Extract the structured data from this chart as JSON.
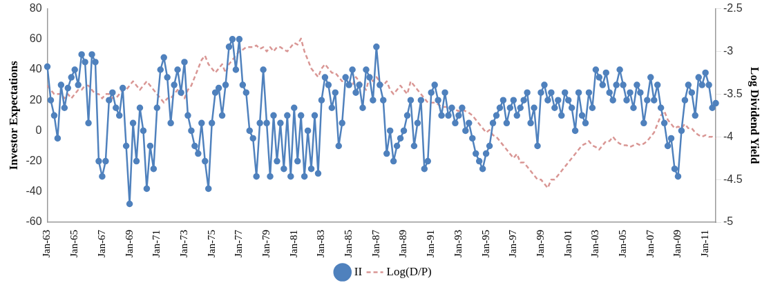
{
  "chart_data": {
    "type": "line",
    "ylabel": "Investor Expectations",
    "y2label": "Log Dividend Yield",
    "categories": [
      "Jan-63",
      null,
      null,
      null,
      null,
      null,
      null,
      null,
      "Jan-65",
      null,
      null,
      null,
      null,
      null,
      null,
      null,
      "Jan-67",
      null,
      null,
      null,
      null,
      null,
      null,
      null,
      "Jan-69",
      null,
      null,
      null,
      null,
      null,
      null,
      null,
      "Jan-71",
      null,
      null,
      null,
      null,
      null,
      null,
      null,
      "Jan-73",
      null,
      null,
      null,
      null,
      null,
      null,
      null,
      "Jan-75",
      null,
      null,
      null,
      null,
      null,
      null,
      null,
      "Jan-77",
      null,
      null,
      null,
      null,
      null,
      null,
      null,
      "Jan-79",
      null,
      null,
      null,
      null,
      null,
      null,
      null,
      "Jan-81",
      null,
      null,
      null,
      null,
      null,
      null,
      null,
      "Jan-83",
      null,
      null,
      null,
      null,
      null,
      null,
      null,
      "Jan-85",
      null,
      null,
      null,
      null,
      null,
      null,
      null,
      "Jan-87",
      null,
      null,
      null,
      null,
      null,
      null,
      null,
      "Jan-89",
      null,
      null,
      null,
      null,
      null,
      null,
      null,
      "Jan-91",
      null,
      null,
      null,
      null,
      null,
      null,
      null,
      "Jan-93",
      null,
      null,
      null,
      null,
      null,
      null,
      null,
      "Jan-95",
      null,
      null,
      null,
      null,
      null,
      null,
      null,
      "Jan-97",
      null,
      null,
      null,
      null,
      null,
      null,
      null,
      "Jan-99",
      null,
      null,
      null,
      null,
      null,
      null,
      null,
      "Jan-01",
      null,
      null,
      null,
      null,
      null,
      null,
      null,
      "Jan-03",
      null,
      null,
      null,
      null,
      null,
      null,
      null,
      "Jan-05",
      null,
      null,
      null,
      null,
      null,
      null,
      null,
      "Jan-07",
      null,
      null,
      null,
      null,
      null,
      null,
      null,
      "Jan-09",
      null,
      null,
      null,
      null,
      null,
      null,
      null,
      "Jan-11",
      null,
      null,
      null
    ],
    "series": [
      {
        "name": "II",
        "color": "#4f81bd",
        "marker": "circle",
        "line_style": "solid",
        "values": [
          42,
          20,
          10,
          -5,
          30,
          15,
          28,
          35,
          40,
          30,
          50,
          45,
          5,
          50,
          45,
          -20,
          -30,
          -20,
          20,
          25,
          15,
          10,
          28,
          -10,
          -48,
          5,
          -20,
          15,
          0,
          -38,
          -10,
          -25,
          15,
          40,
          48,
          35,
          5,
          30,
          40,
          25,
          45,
          10,
          0,
          -10,
          -15,
          5,
          -20,
          -38,
          5,
          25,
          28,
          10,
          30,
          55,
          60,
          40,
          60,
          30,
          25,
          0,
          -5,
          -30,
          5,
          40,
          5,
          -30,
          10,
          -20,
          5,
          -25,
          10,
          -30,
          15,
          -20,
          10,
          -30,
          0,
          -25,
          10,
          -28,
          20,
          35,
          30,
          15,
          25,
          -10,
          5,
          35,
          30,
          40,
          25,
          30,
          15,
          40,
          35,
          20,
          55,
          30,
          20,
          -15,
          0,
          -20,
          -10,
          -5,
          0,
          10,
          20,
          -10,
          5,
          20,
          -25,
          -20,
          25,
          30,
          20,
          10,
          25,
          10,
          15,
          5,
          10,
          15,
          0,
          5,
          -5,
          -15,
          -20,
          -25,
          -15,
          -10,
          5,
          10,
          15,
          20,
          5,
          15,
          20,
          10,
          15,
          20,
          25,
          5,
          15,
          -10,
          25,
          30,
          20,
          25,
          15,
          20,
          10,
          25,
          20,
          15,
          0,
          25,
          10,
          5,
          25,
          15,
          40,
          35,
          30,
          38,
          25,
          20,
          30,
          40,
          30,
          20,
          25,
          15,
          30,
          25,
          5,
          20,
          35,
          20,
          30,
          15,
          5,
          -10,
          -5,
          -25,
          -30,
          0,
          20,
          30,
          25,
          10,
          35,
          30,
          38,
          30,
          15,
          18
        ]
      },
      {
        "name": "Log(D/P)",
        "color": "#d99694",
        "axis": "y2",
        "marker": "none",
        "line_style": "dashed",
        "values": [
          -3.4,
          -3.45,
          -3.5,
          -3.5,
          -3.5,
          -3.55,
          -3.5,
          -3.55,
          -3.5,
          -3.45,
          -3.45,
          -3.4,
          -3.4,
          -3.45,
          -3.5,
          -3.5,
          -3.55,
          -3.5,
          -3.5,
          -3.55,
          -3.55,
          -3.5,
          -3.45,
          -3.45,
          -3.4,
          -3.35,
          -3.4,
          -3.45,
          -3.4,
          -3.35,
          -3.4,
          -3.45,
          -3.5,
          -3.55,
          -3.6,
          -3.55,
          -3.55,
          -3.5,
          -3.45,
          -3.5,
          -3.55,
          -3.45,
          -3.4,
          -3.3,
          -3.2,
          -3.1,
          -3.05,
          -3.15,
          -3.2,
          -3.25,
          -3.2,
          -3.15,
          -3.25,
          -3.15,
          -3.1,
          -3.05,
          -3.0,
          -2.98,
          -2.95,
          -2.95,
          -2.95,
          -2.93,
          -2.97,
          -2.95,
          -3.0,
          -2.95,
          -3.0,
          -2.95,
          -2.95,
          -2.98,
          -3.0,
          -2.95,
          -2.9,
          -2.92,
          -2.85,
          -3.0,
          -3.1,
          -3.2,
          -3.25,
          -3.3,
          -3.2,
          -3.15,
          -3.2,
          -3.25,
          -3.25,
          -3.3,
          -3.35,
          -3.3,
          -3.35,
          -3.4,
          -3.3,
          -3.35,
          -3.4,
          -3.45,
          -3.3,
          -3.35,
          -3.3,
          -3.35,
          -3.4,
          -3.35,
          -3.45,
          -3.5,
          -3.45,
          -3.4,
          -3.45,
          -3.5,
          -3.35,
          -3.4,
          -3.45,
          -3.5,
          -3.55,
          -3.6,
          -3.6,
          -3.6,
          -3.62,
          -3.65,
          -3.65,
          -3.65,
          -3.67,
          -3.68,
          -3.7,
          -3.68,
          -3.7,
          -3.72,
          -3.75,
          -3.8,
          -3.85,
          -3.9,
          -3.95,
          -3.92,
          -3.98,
          -4.0,
          -4.05,
          -4.1,
          -4.15,
          -4.2,
          -4.25,
          -4.2,
          -4.3,
          -4.3,
          -4.35,
          -4.4,
          -4.45,
          -4.5,
          -4.5,
          -4.55,
          -4.6,
          -4.5,
          -4.5,
          -4.45,
          -4.4,
          -4.35,
          -4.3,
          -4.25,
          -4.2,
          -4.15,
          -4.1,
          -4.08,
          -4.05,
          -4.1,
          -4.12,
          -4.15,
          -4.1,
          -4.05,
          -4.05,
          -4.0,
          -4.05,
          -4.08,
          -4.1,
          -4.1,
          -4.12,
          -4.1,
          -4.08,
          -4.1,
          -4.08,
          -4.05,
          -4.0,
          -3.95,
          -3.85,
          -3.75,
          -3.7,
          -3.8,
          -3.85,
          -3.9,
          -3.88,
          -3.9,
          -3.85,
          -3.9,
          -3.9,
          -3.95,
          -3.98,
          -4.0,
          -3.98,
          -4.0,
          -4.0,
          -4.02
        ]
      }
    ],
    "ylim": [
      -60,
      80
    ],
    "yticks": [
      -60,
      -40,
      -20,
      0,
      20,
      40,
      60,
      80
    ],
    "y2lim": [
      -5,
      -2.5
    ],
    "y2ticks": [
      -5,
      -4.5,
      -4,
      -3.5,
      -3,
      -2.5
    ],
    "grid": false,
    "legend": "bottom"
  }
}
